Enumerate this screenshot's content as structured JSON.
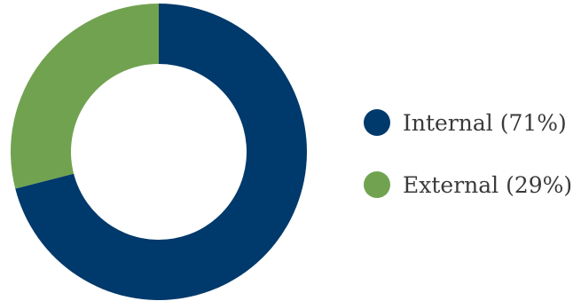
{
  "chart_data": {
    "type": "pie",
    "donut": true,
    "series": [
      {
        "name": "Internal",
        "value": 71,
        "color": "#00396b",
        "legend_label": "Internal (71%)"
      },
      {
        "name": "External",
        "value": 29,
        "color": "#71a250",
        "legend_label": "External (29%)"
      }
    ],
    "legend_placement": "right"
  }
}
